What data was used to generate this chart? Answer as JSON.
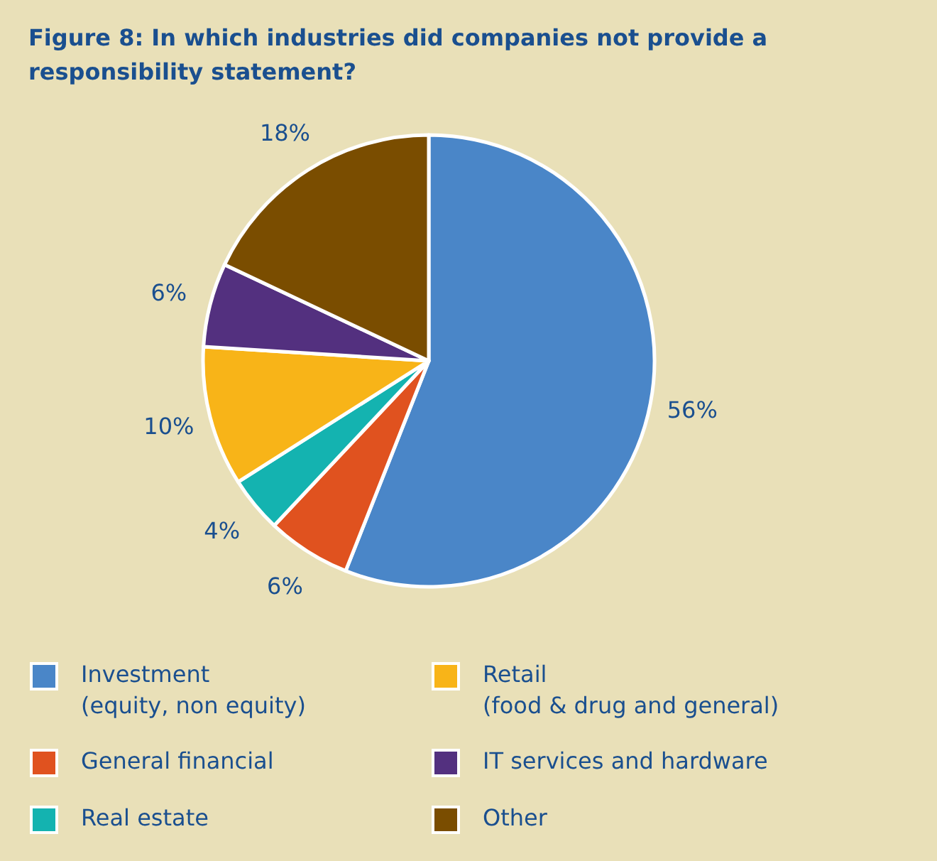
{
  "chart_data": {
    "type": "pie",
    "title": "Figure 8: In which industries did companies not provide a responsibility statement?",
    "categories": [
      "Investment (equity, non equity)",
      "General financial",
      "Real estate",
      "Retail (food & drug and general)",
      "IT services and hardware",
      "Other"
    ],
    "values": [
      56,
      6,
      4,
      10,
      6,
      18
    ],
    "colors": [
      "#4a86c8",
      "#e0521f",
      "#14b3b0",
      "#f8b418",
      "#53307f",
      "#7a4d00"
    ],
    "value_labels": [
      "56%",
      "6%",
      "4%",
      "10%",
      "6%",
      "18%"
    ],
    "legend": "bottom"
  }
}
